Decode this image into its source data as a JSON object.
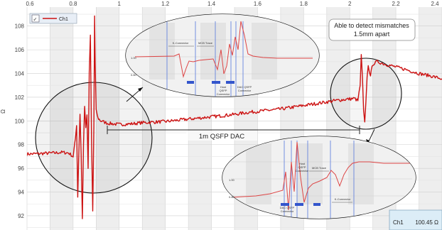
{
  "chart_data": {
    "type": "line",
    "title": "",
    "xlabel": "",
    "ylabel": "Ω",
    "xlim": [
      0.6,
      2.4
    ],
    "ylim": [
      90.8,
      109.6
    ],
    "x_ticks": [
      "0.6",
      "0.8",
      "1",
      "1.2",
      "1.4",
      "1.6",
      "1.8",
      "2",
      "2.2",
      "2.4"
    ],
    "y_ticks": [
      "92",
      "94",
      "96",
      "98",
      "100",
      "102",
      "104",
      "106",
      "108"
    ],
    "grid": true,
    "legend": {
      "position": "top-left",
      "checkbox": "✓"
    },
    "series": [
      {
        "name": "Ch1",
        "color": "#cc1111",
        "points": [
          [
            0.6,
            97.2
          ],
          [
            0.66,
            97.25
          ],
          [
            0.72,
            97.3
          ],
          [
            0.75,
            97.35
          ],
          [
            0.78,
            97.3
          ],
          [
            0.8,
            97.0
          ],
          [
            0.81,
            98.5
          ],
          [
            0.815,
            99.7
          ],
          [
            0.82,
            93.6
          ],
          [
            0.825,
            97.5
          ],
          [
            0.83,
            100.6
          ],
          [
            0.835,
            97.2
          ],
          [
            0.84,
            91.8
          ],
          [
            0.845,
            98.0
          ],
          [
            0.85,
            101.2
          ],
          [
            0.855,
            99.5
          ],
          [
            0.86,
            100.4
          ],
          [
            0.865,
            96.0
          ],
          [
            0.87,
            104.0
          ],
          [
            0.875,
            107.2
          ],
          [
            0.88,
            98.5
          ],
          [
            0.885,
            92.4
          ],
          [
            0.89,
            99.5
          ],
          [
            0.893,
            108.8
          ],
          [
            0.896,
            104.5
          ],
          [
            0.9,
            101.0
          ],
          [
            0.905,
            100.4
          ],
          [
            0.91,
            100.2
          ],
          [
            0.92,
            100.0
          ],
          [
            0.95,
            99.8
          ],
          [
            1.0,
            99.7
          ],
          [
            1.05,
            99.75
          ],
          [
            1.1,
            99.85
          ],
          [
            1.15,
            99.9
          ],
          [
            1.2,
            99.95
          ],
          [
            1.25,
            100.05
          ],
          [
            1.3,
            100.15
          ],
          [
            1.35,
            100.25
          ],
          [
            1.4,
            100.35
          ],
          [
            1.45,
            100.45
          ],
          [
            1.5,
            100.55
          ],
          [
            1.55,
            100.7
          ],
          [
            1.6,
            100.8
          ],
          [
            1.65,
            100.9
          ],
          [
            1.7,
            101.0
          ],
          [
            1.75,
            101.15
          ],
          [
            1.8,
            101.3
          ],
          [
            1.85,
            101.45
          ],
          [
            1.9,
            101.6
          ],
          [
            1.95,
            101.75
          ],
          [
            2.0,
            101.85
          ],
          [
            2.02,
            101.9
          ],
          [
            2.035,
            101.7
          ],
          [
            2.045,
            103.0
          ],
          [
            2.05,
            105.5
          ],
          [
            2.055,
            103.5
          ],
          [
            2.06,
            100.8
          ],
          [
            2.065,
            99.8
          ],
          [
            2.07,
            101.5
          ],
          [
            2.075,
            103.8
          ],
          [
            2.08,
            104.6
          ],
          [
            2.085,
            104.2
          ],
          [
            2.09,
            103.9
          ],
          [
            2.1,
            104.8
          ],
          [
            2.12,
            105.0
          ],
          [
            2.15,
            104.8
          ],
          [
            2.2,
            104.55
          ],
          [
            2.25,
            104.3
          ],
          [
            2.3,
            104.0
          ],
          [
            2.35,
            103.8
          ],
          [
            2.4,
            103.55
          ]
        ]
      }
    ],
    "annotations": {
      "note_line1": "Able to detect mismatches",
      "note_line2": "1.5mm apart",
      "span_label": "1m QSFP DAC",
      "readout_channel": "Ch1",
      "readout_value": "100.45 Ω"
    },
    "inset_top": {
      "y_ticks": [
        "1.00",
        "0.80"
      ],
      "labels": {
        "connector": "K-Connector",
        "mcb_trace": "MCB Trace",
        "host_line1": "Host",
        "host_line2": "QSFP",
        "host_line3": "Connector",
        "dac_line1": "DAC QSFP",
        "dac_line2": "Connector"
      }
    },
    "inset_bottom": {
      "y_ticks": [
        "1.00",
        "0.80"
      ],
      "labels": {
        "dac_line1": "DAC QSFP",
        "dac_line2": "Connector",
        "host_line1": "Host",
        "host_line2": "QSFP",
        "host_line3": "Connector",
        "mcb_trace": "MCB Trace",
        "connector": "K-Connector"
      }
    }
  }
}
